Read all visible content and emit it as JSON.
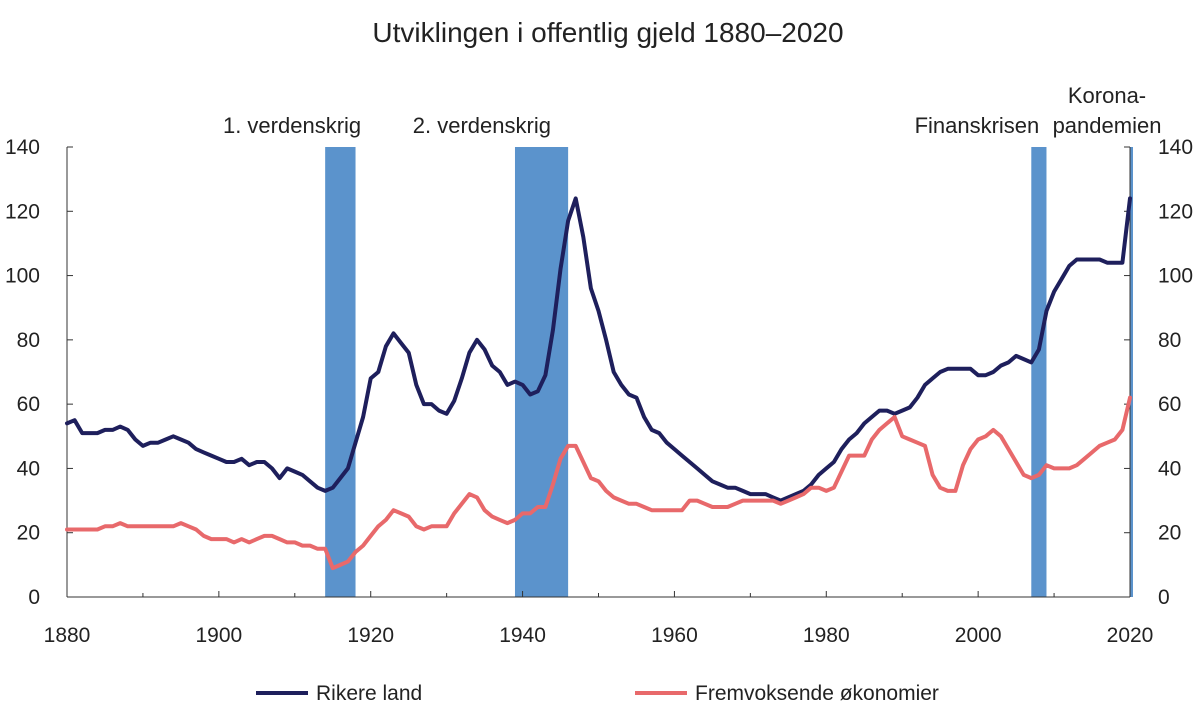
{
  "chart_data": {
    "type": "line",
    "title": "Utviklingen i offentlig gjeld 1880–2020",
    "xlim": [
      1880,
      2020
    ],
    "ylim": [
      0,
      140
    ],
    "x_ticks": [
      "1880",
      "1900",
      "1920",
      "1940",
      "1960",
      "1980",
      "2000",
      "2020"
    ],
    "y_ticks": [
      "0",
      "20",
      "40",
      "60",
      "80",
      "100",
      "120",
      "140"
    ],
    "grid": false,
    "legend_position": "bottom",
    "colors": {
      "rikere": "#1e1f5c",
      "fremvoksende": "#e8696b",
      "event": "#5b93cc"
    },
    "events": [
      {
        "label": [
          "1. verdenskrig"
        ],
        "start": 1914,
        "end": 1918
      },
      {
        "label": [
          "2. verdenskrig"
        ],
        "start": 1939,
        "end": 1946
      },
      {
        "label": [
          "Finanskrisen"
        ],
        "start": 2007,
        "end": 2009
      },
      {
        "label": [
          "Korona-",
          "pandemien"
        ],
        "start": 2020,
        "end": 2021
      }
    ],
    "series": [
      {
        "name": "Rikere land",
        "color": "#1e1f5c",
        "points": [
          [
            1880,
            54
          ],
          [
            1881,
            55
          ],
          [
            1882,
            51
          ],
          [
            1883,
            51
          ],
          [
            1884,
            51
          ],
          [
            1885,
            52
          ],
          [
            1886,
            52
          ],
          [
            1887,
            53
          ],
          [
            1888,
            52
          ],
          [
            1889,
            49
          ],
          [
            1890,
            47
          ],
          [
            1891,
            48
          ],
          [
            1892,
            48
          ],
          [
            1893,
            49
          ],
          [
            1894,
            50
          ],
          [
            1895,
            49
          ],
          [
            1896,
            48
          ],
          [
            1897,
            46
          ],
          [
            1898,
            45
          ],
          [
            1899,
            44
          ],
          [
            1900,
            43
          ],
          [
            1901,
            42
          ],
          [
            1902,
            42
          ],
          [
            1903,
            43
          ],
          [
            1904,
            41
          ],
          [
            1905,
            42
          ],
          [
            1906,
            42
          ],
          [
            1907,
            40
          ],
          [
            1908,
            37
          ],
          [
            1909,
            40
          ],
          [
            1910,
            39
          ],
          [
            1911,
            38
          ],
          [
            1912,
            36
          ],
          [
            1913,
            34
          ],
          [
            1914,
            33
          ],
          [
            1915,
            34
          ],
          [
            1916,
            37
          ],
          [
            1917,
            40
          ],
          [
            1918,
            48
          ],
          [
            1919,
            56
          ],
          [
            1920,
            68
          ],
          [
            1921,
            70
          ],
          [
            1922,
            78
          ],
          [
            1923,
            82
          ],
          [
            1924,
            79
          ],
          [
            1925,
            76
          ],
          [
            1926,
            66
          ],
          [
            1927,
            60
          ],
          [
            1928,
            60
          ],
          [
            1929,
            58
          ],
          [
            1930,
            57
          ],
          [
            1931,
            61
          ],
          [
            1932,
            68
          ],
          [
            1933,
            76
          ],
          [
            1934,
            80
          ],
          [
            1935,
            77
          ],
          [
            1936,
            72
          ],
          [
            1937,
            70
          ],
          [
            1938,
            66
          ],
          [
            1939,
            67
          ],
          [
            1940,
            66
          ],
          [
            1941,
            63
          ],
          [
            1942,
            64
          ],
          [
            1943,
            69
          ],
          [
            1944,
            83
          ],
          [
            1945,
            102
          ],
          [
            1946,
            117
          ],
          [
            1947,
            124
          ],
          [
            1948,
            112
          ],
          [
            1949,
            96
          ],
          [
            1950,
            89
          ],
          [
            1951,
            80
          ],
          [
            1952,
            70
          ],
          [
            1953,
            66
          ],
          [
            1954,
            63
          ],
          [
            1955,
            62
          ],
          [
            1956,
            56
          ],
          [
            1957,
            52
          ],
          [
            1958,
            51
          ],
          [
            1959,
            48
          ],
          [
            1960,
            46
          ],
          [
            1961,
            44
          ],
          [
            1962,
            42
          ],
          [
            1963,
            40
          ],
          [
            1964,
            38
          ],
          [
            1965,
            36
          ],
          [
            1966,
            35
          ],
          [
            1967,
            34
          ],
          [
            1968,
            34
          ],
          [
            1969,
            33
          ],
          [
            1970,
            32
          ],
          [
            1971,
            32
          ],
          [
            1972,
            32
          ],
          [
            1973,
            31
          ],
          [
            1974,
            30
          ],
          [
            1975,
            31
          ],
          [
            1976,
            32
          ],
          [
            1977,
            33
          ],
          [
            1978,
            35
          ],
          [
            1979,
            38
          ],
          [
            1980,
            40
          ],
          [
            1981,
            42
          ],
          [
            1982,
            46
          ],
          [
            1983,
            49
          ],
          [
            1984,
            51
          ],
          [
            1985,
            54
          ],
          [
            1986,
            56
          ],
          [
            1987,
            58
          ],
          [
            1988,
            58
          ],
          [
            1989,
            57
          ],
          [
            1990,
            58
          ],
          [
            1991,
            59
          ],
          [
            1992,
            62
          ],
          [
            1993,
            66
          ],
          [
            1994,
            68
          ],
          [
            1995,
            70
          ],
          [
            1996,
            71
          ],
          [
            1997,
            71
          ],
          [
            1998,
            71
          ],
          [
            1999,
            71
          ],
          [
            2000,
            69
          ],
          [
            2001,
            69
          ],
          [
            2002,
            70
          ],
          [
            2003,
            72
          ],
          [
            2004,
            73
          ],
          [
            2005,
            75
          ],
          [
            2006,
            74
          ],
          [
            2007,
            73
          ],
          [
            2008,
            77
          ],
          [
            2009,
            89
          ],
          [
            2010,
            95
          ],
          [
            2011,
            99
          ],
          [
            2012,
            103
          ],
          [
            2013,
            105
          ],
          [
            2014,
            105
          ],
          [
            2015,
            105
          ],
          [
            2016,
            105
          ],
          [
            2017,
            104
          ],
          [
            2018,
            104
          ],
          [
            2019,
            104
          ],
          [
            2020,
            124
          ]
        ]
      },
      {
        "name": "Fremvoksende økonomier",
        "color": "#e8696b",
        "points": [
          [
            1880,
            21
          ],
          [
            1881,
            21
          ],
          [
            1882,
            21
          ],
          [
            1883,
            21
          ],
          [
            1884,
            21
          ],
          [
            1885,
            22
          ],
          [
            1886,
            22
          ],
          [
            1887,
            23
          ],
          [
            1888,
            22
          ],
          [
            1889,
            22
          ],
          [
            1890,
            22
          ],
          [
            1891,
            22
          ],
          [
            1892,
            22
          ],
          [
            1893,
            22
          ],
          [
            1894,
            22
          ],
          [
            1895,
            23
          ],
          [
            1896,
            22
          ],
          [
            1897,
            21
          ],
          [
            1898,
            19
          ],
          [
            1899,
            18
          ],
          [
            1900,
            18
          ],
          [
            1901,
            18
          ],
          [
            1902,
            17
          ],
          [
            1903,
            18
          ],
          [
            1904,
            17
          ],
          [
            1905,
            18
          ],
          [
            1906,
            19
          ],
          [
            1907,
            19
          ],
          [
            1908,
            18
          ],
          [
            1909,
            17
          ],
          [
            1910,
            17
          ],
          [
            1911,
            16
          ],
          [
            1912,
            16
          ],
          [
            1913,
            15
          ],
          [
            1914,
            15
          ],
          [
            1915,
            9
          ],
          [
            1916,
            10
          ],
          [
            1917,
            11
          ],
          [
            1918,
            14
          ],
          [
            1919,
            16
          ],
          [
            1920,
            19
          ],
          [
            1921,
            22
          ],
          [
            1922,
            24
          ],
          [
            1923,
            27
          ],
          [
            1924,
            26
          ],
          [
            1925,
            25
          ],
          [
            1926,
            22
          ],
          [
            1927,
            21
          ],
          [
            1928,
            22
          ],
          [
            1929,
            22
          ],
          [
            1930,
            22
          ],
          [
            1931,
            26
          ],
          [
            1932,
            29
          ],
          [
            1933,
            32
          ],
          [
            1934,
            31
          ],
          [
            1935,
            27
          ],
          [
            1936,
            25
          ],
          [
            1937,
            24
          ],
          [
            1938,
            23
          ],
          [
            1939,
            24
          ],
          [
            1940,
            26
          ],
          [
            1941,
            26
          ],
          [
            1942,
            28
          ],
          [
            1943,
            28
          ],
          [
            1944,
            35
          ],
          [
            1945,
            43
          ],
          [
            1946,
            47
          ],
          [
            1947,
            47
          ],
          [
            1948,
            42
          ],
          [
            1949,
            37
          ],
          [
            1950,
            36
          ],
          [
            1951,
            33
          ],
          [
            1952,
            31
          ],
          [
            1953,
            30
          ],
          [
            1954,
            29
          ],
          [
            1955,
            29
          ],
          [
            1956,
            28
          ],
          [
            1957,
            27
          ],
          [
            1958,
            27
          ],
          [
            1959,
            27
          ],
          [
            1960,
            27
          ],
          [
            1961,
            27
          ],
          [
            1962,
            30
          ],
          [
            1963,
            30
          ],
          [
            1964,
            29
          ],
          [
            1965,
            28
          ],
          [
            1966,
            28
          ],
          [
            1967,
            28
          ],
          [
            1968,
            29
          ],
          [
            1969,
            30
          ],
          [
            1970,
            30
          ],
          [
            1971,
            30
          ],
          [
            1972,
            30
          ],
          [
            1973,
            30
          ],
          [
            1974,
            29
          ],
          [
            1975,
            30
          ],
          [
            1976,
            31
          ],
          [
            1977,
            32
          ],
          [
            1978,
            34
          ],
          [
            1979,
            34
          ],
          [
            1980,
            33
          ],
          [
            1981,
            34
          ],
          [
            1982,
            39
          ],
          [
            1983,
            44
          ],
          [
            1984,
            44
          ],
          [
            1985,
            44
          ],
          [
            1986,
            49
          ],
          [
            1987,
            52
          ],
          [
            1988,
            54
          ],
          [
            1989,
            56
          ],
          [
            1990,
            50
          ],
          [
            1991,
            49
          ],
          [
            1992,
            48
          ],
          [
            1993,
            47
          ],
          [
            1994,
            38
          ],
          [
            1995,
            34
          ],
          [
            1996,
            33
          ],
          [
            1997,
            33
          ],
          [
            1998,
            41
          ],
          [
            1999,
            46
          ],
          [
            2000,
            49
          ],
          [
            2001,
            50
          ],
          [
            2002,
            52
          ],
          [
            2003,
            50
          ],
          [
            2004,
            46
          ],
          [
            2005,
            42
          ],
          [
            2006,
            38
          ],
          [
            2007,
            37
          ],
          [
            2008,
            38
          ],
          [
            2009,
            41
          ],
          [
            2010,
            40
          ],
          [
            2011,
            40
          ],
          [
            2012,
            40
          ],
          [
            2013,
            41
          ],
          [
            2014,
            43
          ],
          [
            2015,
            45
          ],
          [
            2016,
            47
          ],
          [
            2017,
            48
          ],
          [
            2018,
            49
          ],
          [
            2019,
            52
          ],
          [
            2020,
            62
          ]
        ]
      }
    ]
  }
}
